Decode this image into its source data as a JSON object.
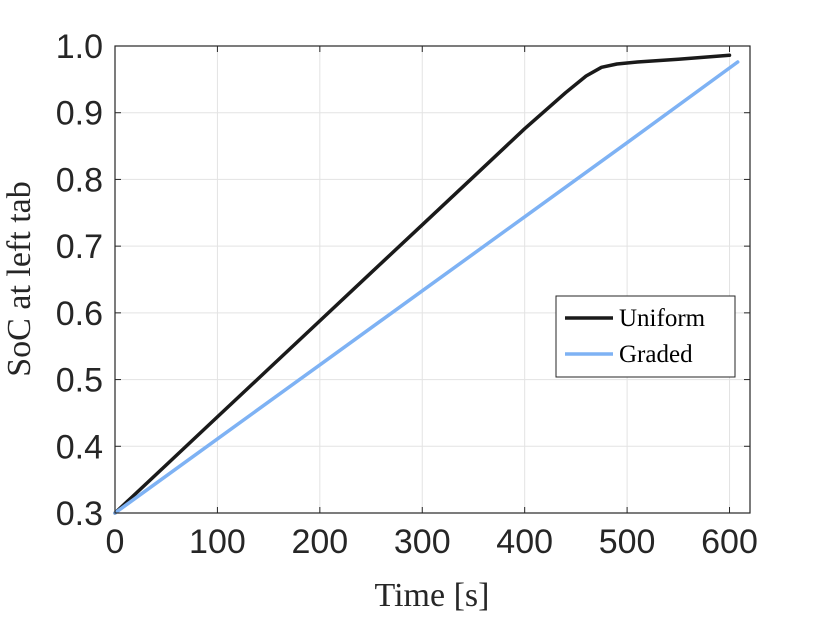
{
  "chart_data": {
    "type": "line",
    "title": "",
    "xlabel": "Time [s]",
    "ylabel": "SoC at left tab",
    "xlim": [
      0,
      620
    ],
    "ylim": [
      0.3,
      1.0
    ],
    "xticks": [
      0,
      100,
      200,
      300,
      400,
      500,
      600
    ],
    "xtick_labels": [
      "0",
      "100",
      "200",
      "300",
      "400",
      "500",
      "600"
    ],
    "yticks": [
      0.3,
      0.4,
      0.5,
      0.6,
      0.7,
      0.8,
      0.9,
      1.0
    ],
    "ytick_labels": [
      "0.3",
      "0.4",
      "0.5",
      "0.6",
      "0.7",
      "0.8",
      "0.9",
      "1.0"
    ],
    "grid": true,
    "legend_position": "right",
    "series": [
      {
        "name": "Uniform",
        "color": "#1a1a1a",
        "x": [
          0,
          50,
          100,
          150,
          200,
          250,
          300,
          350,
          400,
          440,
          460,
          475,
          490,
          510,
          550,
          600
        ],
        "y": [
          0.3,
          0.372,
          0.444,
          0.516,
          0.588,
          0.66,
          0.732,
          0.804,
          0.876,
          0.93,
          0.955,
          0.968,
          0.973,
          0.976,
          0.98,
          0.986
        ]
      },
      {
        "name": "Graded",
        "color": "#7eb2f4",
        "x": [
          0,
          100,
          200,
          300,
          400,
          500,
          608
        ],
        "y": [
          0.3,
          0.411,
          0.522,
          0.633,
          0.744,
          0.855,
          0.976
        ]
      }
    ]
  }
}
